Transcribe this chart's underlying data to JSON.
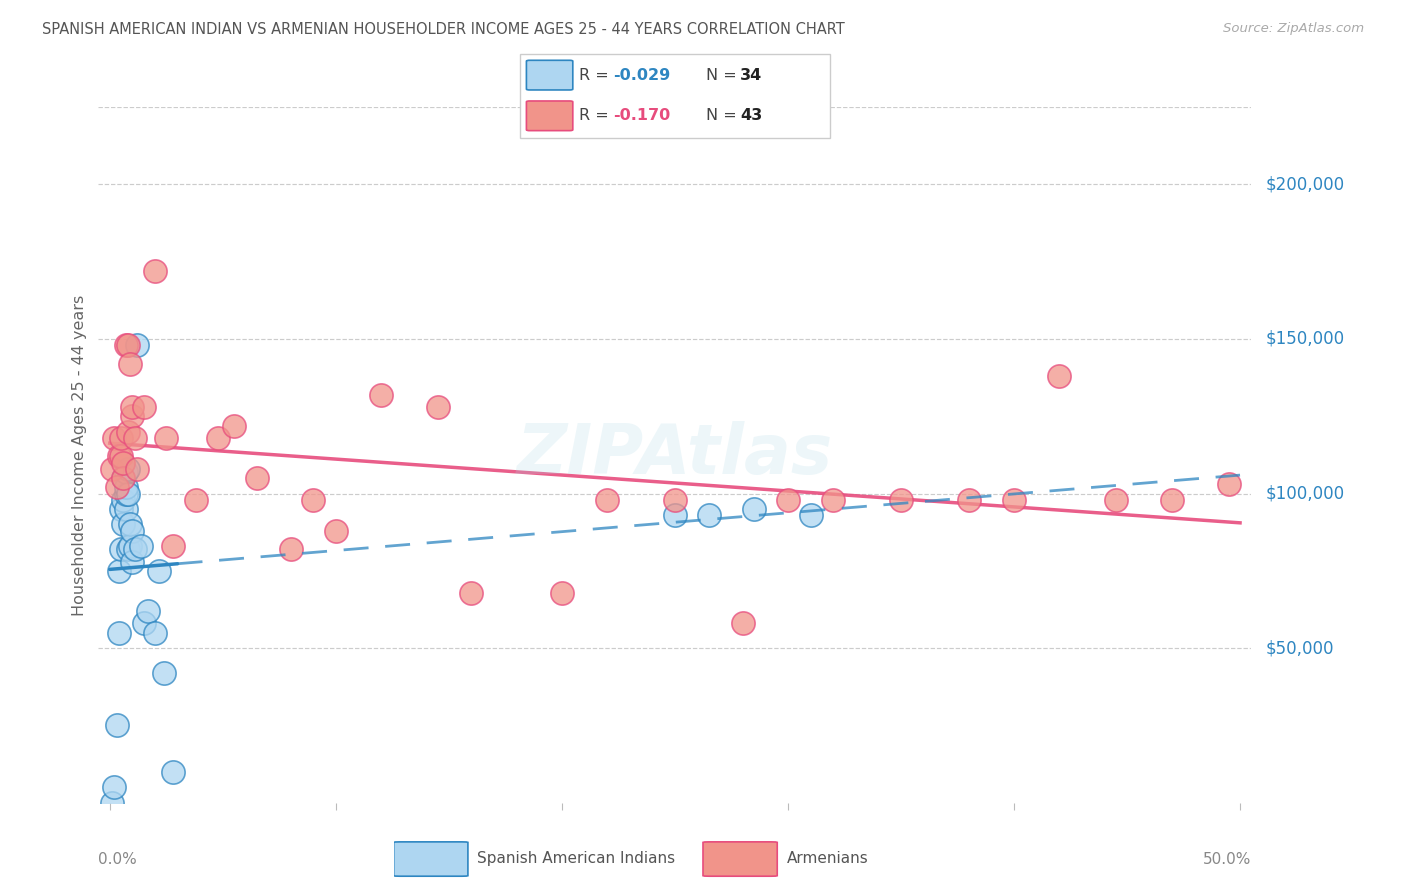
{
  "title": "SPANISH AMERICAN INDIAN VS ARMENIAN HOUSEHOLDER INCOME AGES 25 - 44 YEARS CORRELATION CHART",
  "source": "Source: ZipAtlas.com",
  "ylabel": "Householder Income Ages 25 - 44 years",
  "ytick_values": [
    50000,
    100000,
    150000,
    200000
  ],
  "ytick_labels": [
    "$50,000",
    "$100,000",
    "$150,000",
    "$200,000"
  ],
  "xlim": [
    -0.005,
    0.505
  ],
  "ylim": [
    0,
    225000
  ],
  "legend_label1": "Spanish American Indians",
  "legend_label2": "Armenians",
  "R1": "-0.029",
  "N1": "34",
  "R2": "-0.170",
  "N2": "43",
  "blue_face": "#AED6F1",
  "blue_edge": "#2E86C1",
  "pink_face": "#F1948A",
  "pink_edge": "#E74C7D",
  "blue_line": "#2E86C1",
  "pink_line": "#E74C7D",
  "title_color": "#555555",
  "source_color": "#AAAAAA",
  "ytick_color": "#2E86C1",
  "grid_color": "#CCCCCC",
  "background": "#FFFFFF",
  "blue_x": [
    0.001,
    0.002,
    0.003,
    0.004,
    0.004,
    0.005,
    0.005,
    0.006,
    0.006,
    0.006,
    0.007,
    0.007,
    0.007,
    0.007,
    0.008,
    0.008,
    0.008,
    0.009,
    0.009,
    0.01,
    0.01,
    0.011,
    0.012,
    0.014,
    0.015,
    0.017,
    0.02,
    0.022,
    0.024,
    0.028,
    0.25,
    0.265,
    0.285,
    0.31
  ],
  "blue_y": [
    0,
    5000,
    25000,
    55000,
    75000,
    82000,
    95000,
    90000,
    98000,
    105000,
    95000,
    100000,
    102000,
    107000,
    100000,
    108000,
    82000,
    83000,
    90000,
    78000,
    88000,
    82000,
    148000,
    83000,
    58000,
    62000,
    55000,
    75000,
    42000,
    10000,
    93000,
    93000,
    95000,
    93000
  ],
  "pink_x": [
    0.001,
    0.002,
    0.003,
    0.004,
    0.005,
    0.005,
    0.006,
    0.006,
    0.007,
    0.008,
    0.008,
    0.009,
    0.01,
    0.01,
    0.011,
    0.012,
    0.015,
    0.02,
    0.025,
    0.028,
    0.038,
    0.048,
    0.055,
    0.065,
    0.08,
    0.09,
    0.1,
    0.12,
    0.145,
    0.16,
    0.2,
    0.22,
    0.25,
    0.28,
    0.3,
    0.32,
    0.35,
    0.38,
    0.4,
    0.42,
    0.445,
    0.47,
    0.495
  ],
  "pink_y": [
    108000,
    118000,
    102000,
    112000,
    112000,
    118000,
    105000,
    110000,
    148000,
    148000,
    120000,
    142000,
    125000,
    128000,
    118000,
    108000,
    128000,
    172000,
    118000,
    83000,
    98000,
    118000,
    122000,
    105000,
    82000,
    98000,
    88000,
    132000,
    128000,
    68000,
    68000,
    98000,
    98000,
    58000,
    98000,
    98000,
    98000,
    98000,
    98000,
    138000,
    98000,
    98000,
    103000
  ]
}
